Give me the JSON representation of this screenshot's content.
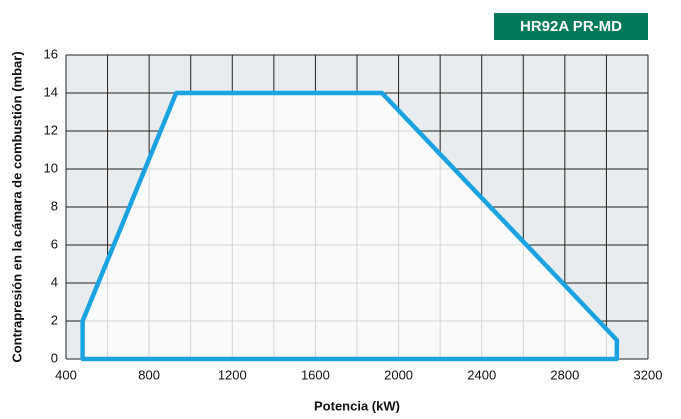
{
  "chart_data": {
    "type": "area",
    "label": "HR92A PR-MD",
    "xlabel": "Potencia (kW)",
    "ylabel": "Contrapresión en la cámara de combustión (mbar)",
    "x": [
      480,
      480,
      930,
      1920,
      3050,
      3050
    ],
    "values": [
      0,
      2,
      14,
      14,
      1,
      0
    ],
    "color": "#1aa3e0",
    "xlim": [
      400,
      3200
    ],
    "xticks": [
      400,
      800,
      1200,
      1600,
      2000,
      2400,
      2800,
      3200
    ],
    "xgrid": [
      400,
      600,
      800,
      1000,
      1200,
      1400,
      1600,
      1800,
      2000,
      2200,
      2400,
      2600,
      2800,
      3000,
      3200
    ],
    "ylim": [
      0,
      16
    ],
    "yticks": [
      0,
      2,
      4,
      6,
      8,
      10,
      12,
      14,
      16
    ],
    "grid": true
  }
}
